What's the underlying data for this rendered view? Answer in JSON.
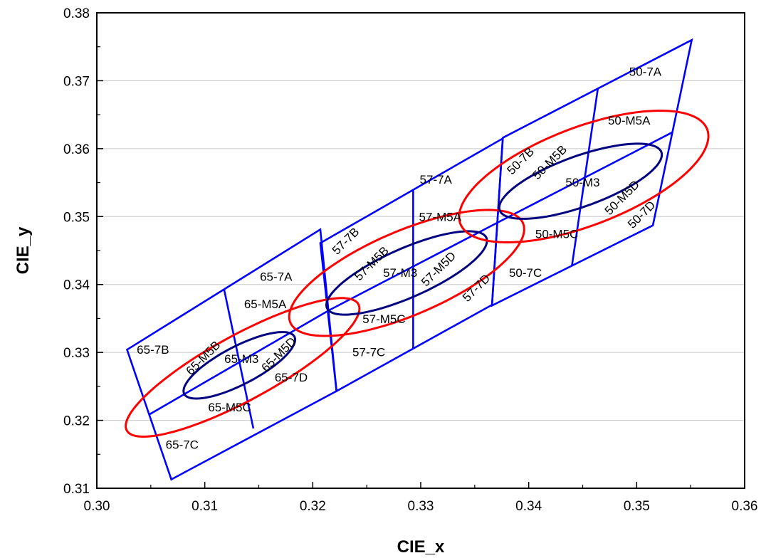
{
  "chart_data": {
    "type": "scatter",
    "xlabel": "CIE_x",
    "ylabel": "CIE_y",
    "xlim": [
      0.3,
      0.36
    ],
    "ylim": [
      0.31,
      0.38
    ],
    "xticks": [
      "0.30",
      "0.31",
      "0.32",
      "0.33",
      "0.34",
      "0.35",
      "0.36"
    ],
    "yticks": [
      "0.31",
      "0.32",
      "0.33",
      "0.34",
      "0.35",
      "0.36",
      "0.37",
      "0.38"
    ],
    "grid": "horizontal",
    "colors": {
      "quadrangle": "#0000ff",
      "ellipse_7step": "#ff0000",
      "ellipse_3step": "#000080",
      "grid": "#c8c8c8"
    },
    "regions": [
      {
        "name": "65",
        "outline": [
          [
            0.3028,
            0.3304
          ],
          [
            0.3207,
            0.3481
          ],
          [
            0.3222,
            0.3243
          ],
          [
            0.3069,
            0.3113
          ]
        ],
        "dividers": [
          [
            [
              0.3049,
              0.3209
            ],
            [
              0.3215,
              0.3362
            ]
          ],
          [
            [
              0.3118,
              0.3392
            ],
            [
              0.3145,
              0.3188
            ]
          ]
        ],
        "ellipse_7step": {
          "center": [
            0.3135,
            0.3278
          ],
          "a": 0.0143,
          "b": 0.0041,
          "angle_deg": 43.0
        },
        "ellipse_3step": {
          "center": [
            0.3132,
            0.3281
          ],
          "a": 0.0067,
          "b": 0.0024,
          "angle_deg": 43.0
        }
      },
      {
        "name": "57",
        "outline": [
          [
            0.3207,
            0.3461
          ],
          [
            0.3376,
            0.3615
          ],
          [
            0.3366,
            0.337
          ],
          [
            0.3222,
            0.3243
          ]
        ],
        "dividers": [
          [
            [
              0.3215,
              0.3362
            ],
            [
              0.3371,
              0.3491
            ]
          ],
          [
            [
              0.3293,
              0.3539
            ],
            [
              0.3293,
              0.3306
            ]
          ]
        ],
        "ellipse_7step": {
          "center": [
            0.3287,
            0.3417
          ],
          "a": 0.0132,
          "b": 0.0055,
          "angle_deg": 38.5
        },
        "ellipse_3step": {
          "center": [
            0.3287,
            0.3417
          ],
          "a": 0.0091,
          "b": 0.0032,
          "angle_deg": 38.0
        }
      },
      {
        "name": "50",
        "outline": [
          [
            0.3376,
            0.3616
          ],
          [
            0.3551,
            0.376
          ],
          [
            0.3515,
            0.3487
          ],
          [
            0.3366,
            0.3369
          ]
        ],
        "dividers": [
          [
            [
              0.3371,
              0.3491
            ],
            [
              0.3533,
              0.3624
            ]
          ],
          [
            [
              0.3464,
              0.3688
            ],
            [
              0.344,
              0.3427
            ]
          ]
        ],
        "ellipse_7step": {
          "center": [
            0.3451,
            0.3559
          ],
          "a": 0.0136,
          "b": 0.0065,
          "angle_deg": 37.0
        },
        "ellipse_3step": {
          "center": [
            0.3448,
            0.3552
          ],
          "a": 0.0087,
          "b": 0.0034,
          "angle_deg": 33.0
        }
      }
    ],
    "annotations": [
      {
        "text": "65-7A",
        "x": 0.3166,
        "y": 0.341,
        "rotate": 0
      },
      {
        "text": "65-7B",
        "x": 0.3052,
        "y": 0.3303,
        "rotate": 0
      },
      {
        "text": "65-7C",
        "x": 0.3079,
        "y": 0.3163,
        "rotate": 0
      },
      {
        "text": "65-7D",
        "x": 0.318,
        "y": 0.3262,
        "rotate": 0
      },
      {
        "text": "65-M5A",
        "x": 0.3156,
        "y": 0.337,
        "rotate": 0
      },
      {
        "text": "65-M5B",
        "x": 0.3099,
        "y": 0.3291,
        "rotate": -45
      },
      {
        "text": "65-M5C",
        "x": 0.3123,
        "y": 0.3218,
        "rotate": 0
      },
      {
        "text": "65-M5D",
        "x": 0.3169,
        "y": 0.3296,
        "rotate": -45
      },
      {
        "text": "65-M3",
        "x": 0.3134,
        "y": 0.3289,
        "rotate": 0
      },
      {
        "text": "57-7A",
        "x": 0.3314,
        "y": 0.3553,
        "rotate": 0
      },
      {
        "text": "57-7B",
        "x": 0.3231,
        "y": 0.3463,
        "rotate": -45
      },
      {
        "text": "57-7C",
        "x": 0.3252,
        "y": 0.3299,
        "rotate": 0
      },
      {
        "text": "57-7D",
        "x": 0.3352,
        "y": 0.3394,
        "rotate": -45
      },
      {
        "text": "57-M5A",
        "x": 0.3318,
        "y": 0.3498,
        "rotate": 0
      },
      {
        "text": "57-M5B",
        "x": 0.3255,
        "y": 0.343,
        "rotate": -45
      },
      {
        "text": "57-M5C",
        "x": 0.3266,
        "y": 0.3348,
        "rotate": 0
      },
      {
        "text": "57-M5D",
        "x": 0.3317,
        "y": 0.3422,
        "rotate": -45
      },
      {
        "text": "57-M3",
        "x": 0.3281,
        "y": 0.3416,
        "rotate": 0
      },
      {
        "text": "50-7A",
        "x": 0.3508,
        "y": 0.3712,
        "rotate": 0
      },
      {
        "text": "50-7B",
        "x": 0.3393,
        "y": 0.3581,
        "rotate": -45
      },
      {
        "text": "50-7C",
        "x": 0.3397,
        "y": 0.3416,
        "rotate": 0
      },
      {
        "text": "50-7D",
        "x": 0.3505,
        "y": 0.3502,
        "rotate": -45
      },
      {
        "text": "50-M5A",
        "x": 0.3493,
        "y": 0.364,
        "rotate": 0
      },
      {
        "text": "50-M5B",
        "x": 0.342,
        "y": 0.3579,
        "rotate": -45
      },
      {
        "text": "50-M5C",
        "x": 0.3426,
        "y": 0.3473,
        "rotate": 0
      },
      {
        "text": "50-M5D",
        "x": 0.3487,
        "y": 0.3527,
        "rotate": -45
      },
      {
        "text": "50-M3",
        "x": 0.345,
        "y": 0.3549,
        "rotate": 0
      }
    ]
  }
}
